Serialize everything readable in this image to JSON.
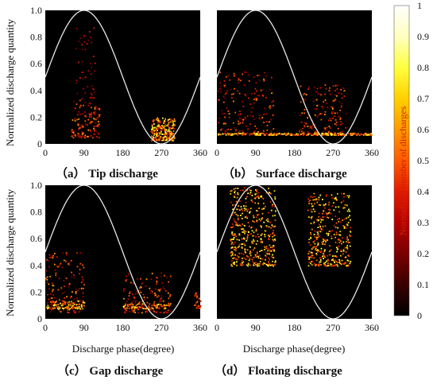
{
  "figure": {
    "colorbar": {
      "label": "Normalized number of discharges",
      "ticks": [
        "0",
        "0.1",
        "0.2",
        "0.3",
        "0.4",
        "0.5",
        "0.6",
        "0.7",
        "0.8",
        "0.9",
        "1"
      ],
      "colors": [
        "#000000",
        "#3a0000",
        "#7a0000",
        "#b50000",
        "#e11b00",
        "#ff5a00",
        "#ff9a00",
        "#ffd000",
        "#ffff40",
        "#ffffc0",
        "#ffffff"
      ]
    },
    "ylabel_top": "Normalized discharge quantity",
    "ylabel_bottom": "Normalized discharge quantity",
    "xlabel_left": "Discharge phase(degree)",
    "xlabel_right": "Discharge phase(degree)",
    "x_ticks": [
      "0",
      "90",
      "180",
      "270",
      "360"
    ],
    "y_ticks": [
      "0",
      "0.2",
      "0.4",
      "0.6",
      "0.8",
      "1.0"
    ],
    "sine_color": "#e8e8e8",
    "background": "#000000"
  },
  "chart_data": [
    {
      "type": "scatter",
      "caption": "（a） Tip discharge",
      "xlim": [
        0,
        360
      ],
      "ylim": [
        0,
        1
      ],
      "reference_curve": "0.5 + 0.5*sin(phase)",
      "clusters": [
        {
          "x_range": [
            60,
            125
          ],
          "y_range": [
            0.05,
            0.35
          ],
          "density": "medium",
          "count": 140
        },
        {
          "x_range": [
            70,
            115
          ],
          "y_range": [
            0.35,
            0.9
          ],
          "density": "sparse",
          "count": 45
        },
        {
          "x_range": [
            245,
            300
          ],
          "y_range": [
            0.03,
            0.2
          ],
          "density": "high",
          "count": 230
        }
      ]
    },
    {
      "type": "scatter",
      "caption": "（b） Surface discharge",
      "xlim": [
        0,
        360
      ],
      "ylim": [
        0,
        1
      ],
      "reference_curve": "0.5 + 0.5*sin(phase)",
      "clusters": [
        {
          "x_range": [
            0,
            130
          ],
          "y_range": [
            0.08,
            0.55
          ],
          "density": "medium",
          "count": 180
        },
        {
          "x_range": [
            190,
            300
          ],
          "y_range": [
            0.08,
            0.45
          ],
          "density": "medium",
          "count": 150
        },
        {
          "x_range": [
            0,
            360
          ],
          "y_range": [
            0.07,
            0.085
          ],
          "density": "high",
          "count": 260
        }
      ]
    },
    {
      "type": "scatter",
      "caption": "（c） Gap discharge",
      "xlim": [
        0,
        360
      ],
      "ylim": [
        0,
        1
      ],
      "reference_curve": "0.5 + 0.5*sin(phase)",
      "clusters": [
        {
          "x_range": [
            0,
            90
          ],
          "y_range": [
            0.05,
            0.5
          ],
          "density": "medium",
          "count": 160
        },
        {
          "x_range": [
            0,
            90
          ],
          "y_range": [
            0.08,
            0.14
          ],
          "density": "high",
          "count": 80
        },
        {
          "x_range": [
            180,
            290
          ],
          "y_range": [
            0.05,
            0.35
          ],
          "density": "medium",
          "count": 150
        },
        {
          "x_range": [
            180,
            290
          ],
          "y_range": [
            0.08,
            0.12
          ],
          "density": "high",
          "count": 80
        },
        {
          "x_range": [
            345,
            360
          ],
          "y_range": [
            0.08,
            0.2
          ],
          "density": "medium",
          "count": 25
        }
      ]
    },
    {
      "type": "scatter",
      "caption": "（d） Floating discharge",
      "xlim": [
        0,
        360
      ],
      "ylim": [
        0,
        1
      ],
      "reference_curve": "0.5 + 0.5*sin(phase)",
      "clusters": [
        {
          "x_range": [
            30,
            135
          ],
          "y_range": [
            0.4,
            1.0
          ],
          "density": "high",
          "count": 420
        },
        {
          "x_range": [
            210,
            310
          ],
          "y_range": [
            0.4,
            0.95
          ],
          "density": "high",
          "count": 360
        }
      ]
    }
  ]
}
